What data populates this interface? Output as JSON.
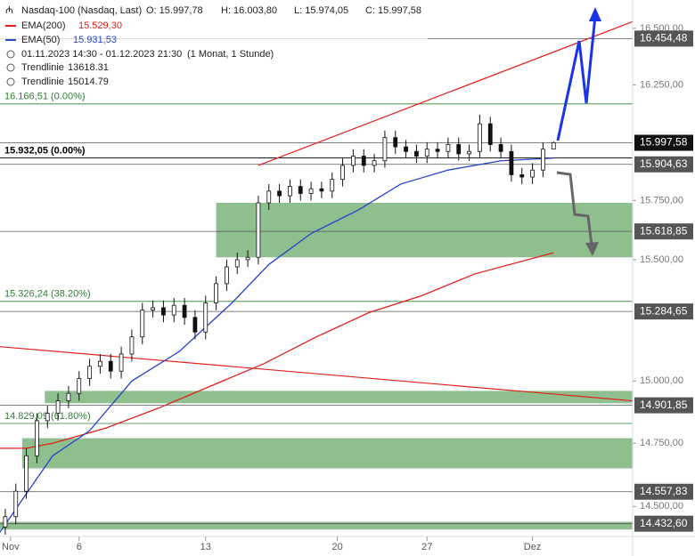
{
  "chart_data": {
    "type": "candlestick",
    "log_scale": true,
    "header": {
      "title": "Nasdaq-100 (Nasdaq, Last)",
      "ohlc": [
        "O: 15.997,78",
        "H: 16.003,80",
        "L: 15.974,05",
        "C: 15.997,58"
      ],
      "range": "01.11.2023 14:30 - 01.12.2023 21:30",
      "period": "(1 Monat, 1 Stunde)",
      "trendlines": [
        {
          "name": "Trendlinie",
          "label": "13618.31"
        },
        {
          "name": "Trendlinie",
          "label": "15014.79"
        }
      ]
    },
    "xlim": [
      0,
      120
    ],
    "ylim": [
      14383,
      16627
    ],
    "xticks": [
      {
        "value": 2,
        "label": "Nov"
      },
      {
        "value": 15,
        "label": "6"
      },
      {
        "value": 39,
        "label": "13"
      },
      {
        "value": 64,
        "label": "20"
      },
      {
        "value": 81,
        "label": "27"
      },
      {
        "value": 101,
        "label": "Dez"
      }
    ],
    "yticks": [
      {
        "value": 16500,
        "label": "16.500,00"
      },
      {
        "value": 16250,
        "label": "16.250,00"
      },
      {
        "value": 15750,
        "label": "15.750,00"
      },
      {
        "value": 15500,
        "label": "15.500,00"
      },
      {
        "value": 15000,
        "label": "15.000,00"
      },
      {
        "value": 14750,
        "label": "14.750,00"
      },
      {
        "value": 14500,
        "label": "14.500,00"
      }
    ],
    "x": [
      1,
      3,
      5,
      7,
      9,
      11,
      13,
      15,
      17,
      19,
      21,
      23,
      25,
      27,
      29,
      31,
      33,
      35,
      37,
      39,
      41,
      43,
      45,
      47,
      49,
      51,
      53,
      55,
      57,
      59,
      61,
      63,
      65,
      67,
      69,
      71,
      73,
      75,
      77,
      79,
      81,
      83,
      85,
      87,
      89,
      91,
      93,
      95,
      97,
      99,
      101,
      103,
      105
    ],
    "open": [
      14420,
      14460,
      14560,
      14700,
      14840,
      14870,
      14920,
      14950,
      15010,
      15060,
      15080,
      15040,
      15110,
      15180,
      15290,
      15300,
      15270,
      15310,
      15260,
      15200,
      15320,
      15400,
      15470,
      15500,
      15510,
      15740,
      15790,
      15770,
      15810,
      15780,
      15800,
      15790,
      15840,
      15900,
      15940,
      15900,
      15920,
      16020,
      15980,
      15960,
      15940,
      15970,
      15960,
      15990,
      15950,
      15960,
      16080,
      15990,
      15960,
      15860,
      15850,
      15880,
      15970
    ],
    "high": [
      14490,
      14590,
      14730,
      14870,
      14900,
      14950,
      14980,
      15040,
      15090,
      15110,
      15110,
      15140,
      15210,
      15320,
      15330,
      15330,
      15340,
      15340,
      15290,
      15350,
      15430,
      15500,
      15530,
      15540,
      15770,
      15820,
      15820,
      15840,
      15840,
      15830,
      15830,
      15870,
      15930,
      15970,
      15970,
      15950,
      16050,
      16050,
      16010,
      15990,
      16000,
      16000,
      16020,
      16020,
      15990,
      16120,
      16110,
      16020,
      15990,
      15890,
      15910,
      16000,
      16004
    ],
    "low": [
      14390,
      14430,
      14530,
      14670,
      14810,
      14840,
      14890,
      14920,
      14980,
      15030,
      15010,
      15010,
      15080,
      15150,
      15260,
      15240,
      15240,
      15230,
      15170,
      15170,
      15290,
      15370,
      15440,
      15470,
      15480,
      15710,
      15740,
      15740,
      15750,
      15750,
      15760,
      15760,
      15810,
      15870,
      15870,
      15870,
      15890,
      15950,
      15930,
      15910,
      15910,
      15930,
      15930,
      15920,
      15920,
      15930,
      15960,
      15930,
      15830,
      15820,
      15820,
      15850,
      15974
    ],
    "close": [
      14460,
      14560,
      14700,
      14840,
      14870,
      14920,
      14950,
      15010,
      15060,
      15080,
      15040,
      15110,
      15180,
      15290,
      15300,
      15270,
      15310,
      15260,
      15200,
      15320,
      15400,
      15470,
      15500,
      15510,
      15740,
      15790,
      15770,
      15810,
      15780,
      15800,
      15790,
      15840,
      15900,
      15940,
      15900,
      15920,
      16020,
      15980,
      15960,
      15940,
      15970,
      15960,
      15990,
      15950,
      15960,
      16080,
      15990,
      15960,
      15860,
      15850,
      15880,
      15970,
      15998
    ],
    "series": [
      {
        "name": "EMA(200)",
        "color": "#e0201b",
        "last_label": "15.529,30",
        "x": [
          0,
          5,
          10,
          20,
          30,
          40,
          50,
          60,
          70,
          80,
          90,
          105
        ],
        "values": [
          14730,
          14730,
          14750,
          14810,
          14890,
          14980,
          15070,
          15180,
          15280,
          15350,
          15440,
          15529.3
        ]
      },
      {
        "name": "EMA(50)",
        "color": "#2443c9",
        "last_label": "15.931,53",
        "x": [
          0,
          5,
          10,
          17,
          25,
          34,
          44,
          51,
          59,
          68,
          76,
          85,
          95,
          105
        ],
        "values": [
          14400,
          14550,
          14700,
          14800,
          15000,
          15120,
          15320,
          15480,
          15610,
          15710,
          15820,
          15880,
          15920,
          15931.53
        ]
      }
    ],
    "trend_lines": [
      {
        "color": "#e0201b",
        "x": [
          49,
          120
        ],
        "values": [
          15900,
          16530
        ]
      },
      {
        "color": "#e0201b",
        "x": [
          0,
          120
        ],
        "values": [
          15140,
          14920
        ]
      }
    ],
    "zones": [
      {
        "color": "#8fbf8f",
        "x": [
          41,
          120
        ],
        "range": [
          15510,
          15740
        ]
      },
      {
        "color": "#8fbf8f",
        "x": [
          8.5,
          120
        ],
        "range": [
          14910,
          14960
        ]
      },
      {
        "color": "#8fbf8f",
        "x": [
          4.2,
          120
        ],
        "range": [
          14650,
          14770
        ]
      },
      {
        "color": "#8fbf8f",
        "x": [
          0,
          120
        ],
        "range": [
          14410,
          14440
        ]
      }
    ],
    "fib_levels": [
      {
        "value": 16166.51,
        "label": "16.166,51 (0.00%)",
        "color": "#2e7d32"
      },
      {
        "value": 15932.05,
        "label": "15.932,05 (0.00%)",
        "color": "#000000"
      },
      {
        "value": 15326.24,
        "label": "15.326,24 (38.20%)",
        "color": "#2e7d32"
      },
      {
        "value": 14829.09,
        "label": "14.829,09 (61.80%)",
        "color": "#2e7d32"
      }
    ],
    "levels": [
      {
        "value": 16454.48,
        "label": "16.454,48"
      },
      {
        "value": 15997.58,
        "label": "15.997,58"
      },
      {
        "value": 15904.63,
        "label": "15.904,63"
      },
      {
        "value": 15618.85,
        "label": "15.618,85"
      },
      {
        "value": 15284.65,
        "label": "15.284,65"
      },
      {
        "value": 14901.85,
        "label": "14.901,85"
      },
      {
        "value": 14557.83,
        "label": "14.557,83"
      },
      {
        "value": 14432.6,
        "label": "14.432,60"
      }
    ]
  }
}
